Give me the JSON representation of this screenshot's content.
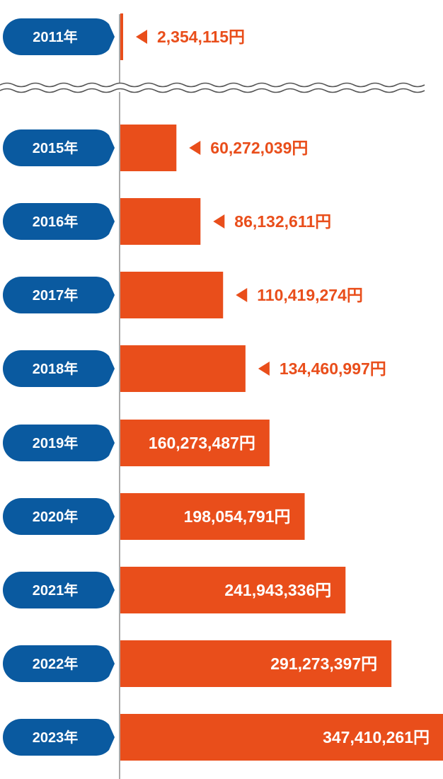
{
  "colors": {
    "bar": "#e94e1b",
    "label_bubble": "#0a5aa0",
    "axis": "#aaaaaa",
    "break_line": "#555555"
  },
  "chart_data": {
    "type": "bar",
    "orientation": "horizontal",
    "axis_break_after": "2011年",
    "categories": [
      "2011年",
      "2015年",
      "2016年",
      "2017年",
      "2018年",
      "2019年",
      "2020年",
      "2021年",
      "2022年",
      "2023年"
    ],
    "values": [
      2354115,
      60272039,
      86132611,
      110419274,
      134460997,
      160273487,
      198054791,
      241943336,
      291273397,
      347410261
    ],
    "value_labels": [
      "2,354,115円",
      "60,272,039円",
      "86,132,611円",
      "110,419,274円",
      "134,460,997円",
      "160,273,487円",
      "198,054,791円",
      "241,943,336円",
      "291,273,397円",
      "347,410,261円"
    ],
    "label_inside": [
      false,
      false,
      false,
      false,
      false,
      true,
      true,
      true,
      true,
      true
    ],
    "xlim": [
      0,
      347410261
    ],
    "grid": false,
    "legend": "none"
  }
}
